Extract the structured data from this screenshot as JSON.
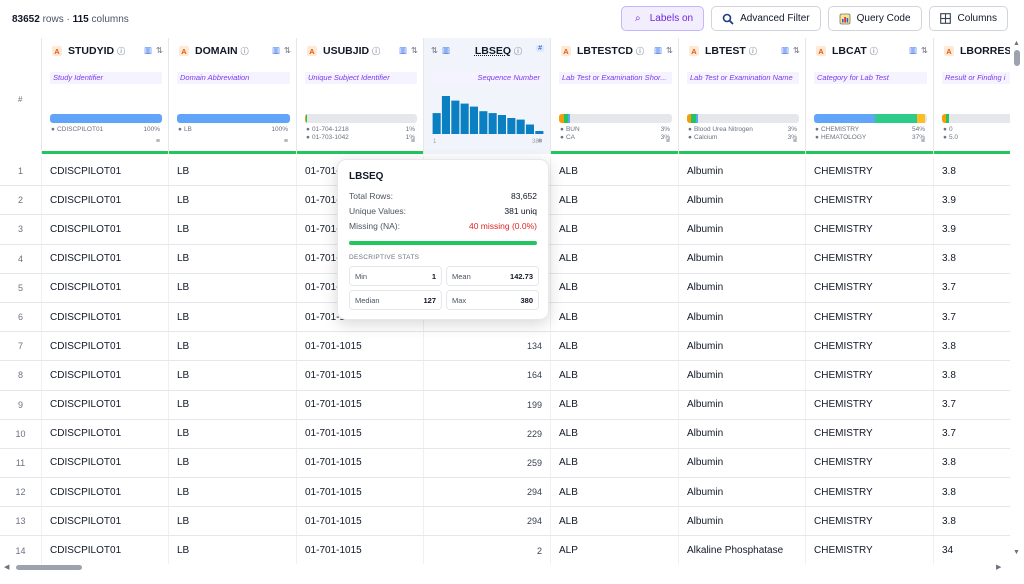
{
  "summary": {
    "rows": "83652",
    "rows_label": "rows ·",
    "cols": "115",
    "cols_label": "columns"
  },
  "toolbar": {
    "labels": "Labels on",
    "advanced_filter": "Advanced Filter",
    "query_code": "Query Code",
    "columns": "Columns"
  },
  "index_header": "#",
  "columns": [
    {
      "name": "STUDYID",
      "desc": "Study Identifier",
      "legend": [
        [
          "CDISCPILOT01",
          "100%"
        ]
      ]
    },
    {
      "name": "DOMAIN",
      "desc": "Domain Abbreviation",
      "legend": [
        [
          "LB",
          "100%"
        ]
      ]
    },
    {
      "name": "USUBJID",
      "desc": "Unique Subject Identifier",
      "legend": [
        [
          "01-704-1218",
          "1%"
        ],
        [
          "01-703-1042",
          "1%"
        ]
      ]
    },
    {
      "name": "LBSEQ",
      "desc": "Sequence Number",
      "axis_min": "1",
      "axis_max": "380"
    },
    {
      "name": "LBTESTCD",
      "desc": "Lab Test or Examination Shor...",
      "legend": [
        [
          "BUN",
          "3%"
        ],
        [
          "CA",
          "3%"
        ]
      ]
    },
    {
      "name": "LBTEST",
      "desc": "Lab Test or Examination Name",
      "legend": [
        [
          "Blood Urea Nitrogen",
          "3%"
        ],
        [
          "Calcium",
          "3%"
        ]
      ]
    },
    {
      "name": "LBCAT",
      "desc": "Category for Lab Test",
      "legend": [
        [
          "CHEMISTRY",
          "54%"
        ],
        [
          "HEMATOLOGY",
          "37%"
        ]
      ]
    },
    {
      "name": "LBORRES",
      "desc": "Result or Finding i",
      "legend": [
        [
          "0",
          ""
        ],
        [
          "5.0",
          ""
        ]
      ]
    }
  ],
  "colors": {
    "accent": "#22c55e",
    "bar": "#60a5fa",
    "hist": "#0a7fc1",
    "purple": "#7c3aed",
    "orange": "#ea580c"
  },
  "lbseq_histogram": [
    0.55,
    1.0,
    0.88,
    0.8,
    0.72,
    0.6,
    0.55,
    0.5,
    0.42,
    0.38,
    0.25,
    0.08
  ],
  "rows": [
    [
      "1",
      "CDISCPILOT01",
      "LB",
      "01-701-1015",
      "",
      "ALB",
      "Albumin",
      "CHEMISTRY",
      "3.8"
    ],
    [
      "2",
      "CDISCPILOT01",
      "LB",
      "01-701-1015",
      "",
      "ALB",
      "Albumin",
      "CHEMISTRY",
      "3.9"
    ],
    [
      "3",
      "CDISCPILOT01",
      "LB",
      "01-701-1015",
      "",
      "ALB",
      "Albumin",
      "CHEMISTRY",
      "3.9"
    ],
    [
      "4",
      "CDISCPILOT01",
      "LB",
      "01-701-1015",
      "",
      "ALB",
      "Albumin",
      "CHEMISTRY",
      "3.8"
    ],
    [
      "5",
      "CDISCPILOT01",
      "LB",
      "01-701-1015",
      "",
      "ALB",
      "Albumin",
      "CHEMISTRY",
      "3.7"
    ],
    [
      "6",
      "CDISCPILOT01",
      "LB",
      "01-701-1015",
      "",
      "ALB",
      "Albumin",
      "CHEMISTRY",
      "3.7"
    ],
    [
      "7",
      "CDISCPILOT01",
      "LB",
      "01-701-1015",
      "134",
      "ALB",
      "Albumin",
      "CHEMISTRY",
      "3.8"
    ],
    [
      "8",
      "CDISCPILOT01",
      "LB",
      "01-701-1015",
      "164",
      "ALB",
      "Albumin",
      "CHEMISTRY",
      "3.8"
    ],
    [
      "9",
      "CDISCPILOT01",
      "LB",
      "01-701-1015",
      "199",
      "ALB",
      "Albumin",
      "CHEMISTRY",
      "3.7"
    ],
    [
      "10",
      "CDISCPILOT01",
      "LB",
      "01-701-1015",
      "229",
      "ALB",
      "Albumin",
      "CHEMISTRY",
      "3.7"
    ],
    [
      "11",
      "CDISCPILOT01",
      "LB",
      "01-701-1015",
      "259",
      "ALB",
      "Albumin",
      "CHEMISTRY",
      "3.8"
    ],
    [
      "12",
      "CDISCPILOT01",
      "LB",
      "01-701-1015",
      "294",
      "ALB",
      "Albumin",
      "CHEMISTRY",
      "3.8"
    ],
    [
      "13",
      "CDISCPILOT01",
      "LB",
      "01-701-1015",
      "294",
      "ALB",
      "Albumin",
      "CHEMISTRY",
      "3.8"
    ],
    [
      "14",
      "CDISCPILOT01",
      "LB",
      "01-701-1015",
      "2",
      "ALP",
      "Alkaline Phosphatase",
      "CHEMISTRY",
      "34"
    ]
  ],
  "popover": {
    "title": "LBSEQ",
    "total_rows_label": "Total Rows:",
    "total_rows": "83,652",
    "unique_label": "Unique Values:",
    "unique": "381 uniq",
    "missing_label": "Missing (NA):",
    "missing": "40 missing (0.0%)",
    "non_missing_fraction": 1.0,
    "stats_heading": "DESCRIPTIVE STATS",
    "min_label": "Min",
    "min": "1",
    "mean_label": "Mean",
    "mean": "142.73",
    "median_label": "Median",
    "median": "127",
    "max_label": "Max",
    "max": "380"
  }
}
